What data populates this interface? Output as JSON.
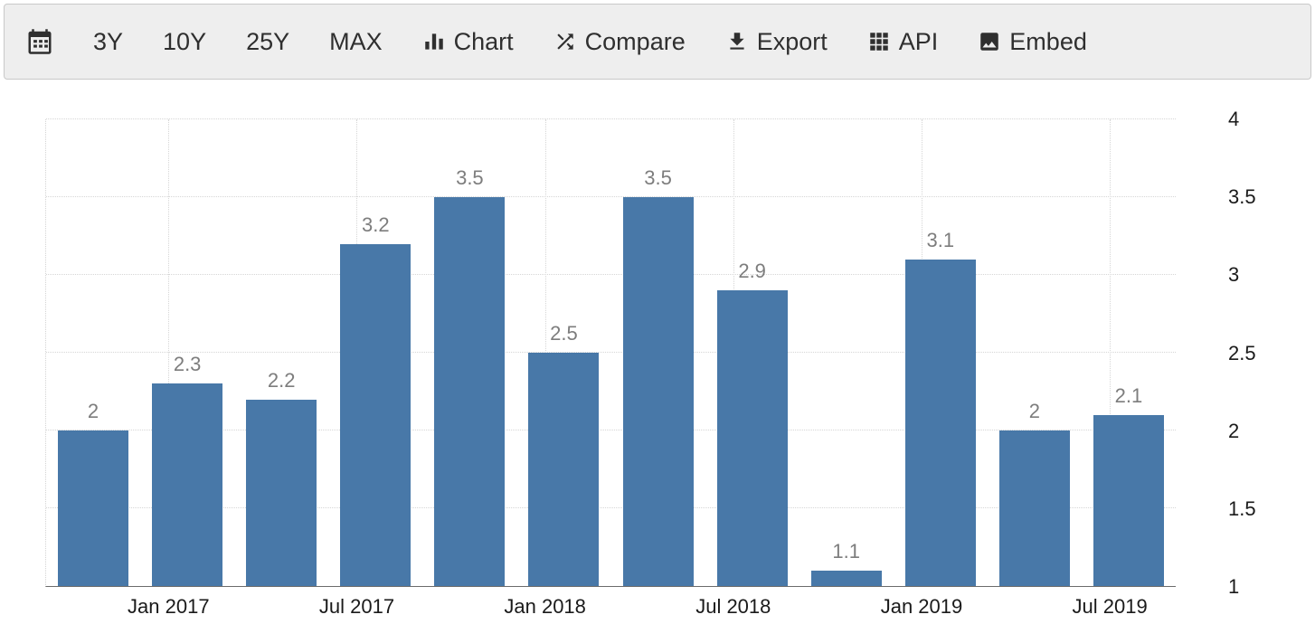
{
  "toolbar": {
    "items": [
      {
        "id": "3y",
        "label": "3Y"
      },
      {
        "id": "10y",
        "label": "10Y"
      },
      {
        "id": "25y",
        "label": "25Y"
      },
      {
        "id": "max",
        "label": "MAX"
      },
      {
        "id": "chart",
        "label": "Chart"
      },
      {
        "id": "compare",
        "label": "Compare"
      },
      {
        "id": "export",
        "label": "Export"
      },
      {
        "id": "api",
        "label": "API"
      },
      {
        "id": "embed",
        "label": "Embed"
      }
    ]
  },
  "chart_data": {
    "type": "bar",
    "categories": [
      "Jan 2017",
      "Apr 2017",
      "Jul 2017",
      "Oct 2017",
      "Jan 2018",
      "Apr 2018",
      "Jul 2018",
      "Oct 2018",
      "Jan 2019",
      "Apr 2019",
      "Jul 2019",
      "Oct 2019"
    ],
    "values": [
      2,
      2.3,
      2.2,
      3.2,
      3.5,
      2.5,
      3.5,
      2.9,
      1.1,
      3.1,
      2,
      2.1
    ],
    "x_tick_labels": [
      "Jan 2017",
      "Jul 2017",
      "Jan 2018",
      "Jul 2018",
      "Jan 2019",
      "Jul 2019"
    ],
    "y_ticks": [
      1,
      1.5,
      2,
      2.5,
      3,
      3.5,
      4
    ],
    "ylim": [
      1,
      4
    ],
    "title": "",
    "xlabel": "",
    "ylabel": "",
    "grid": true,
    "legend": false,
    "bar_color": "#4878a8",
    "value_label_color": "#7d7d7d",
    "axis_label_color": "#1a1a1a"
  }
}
